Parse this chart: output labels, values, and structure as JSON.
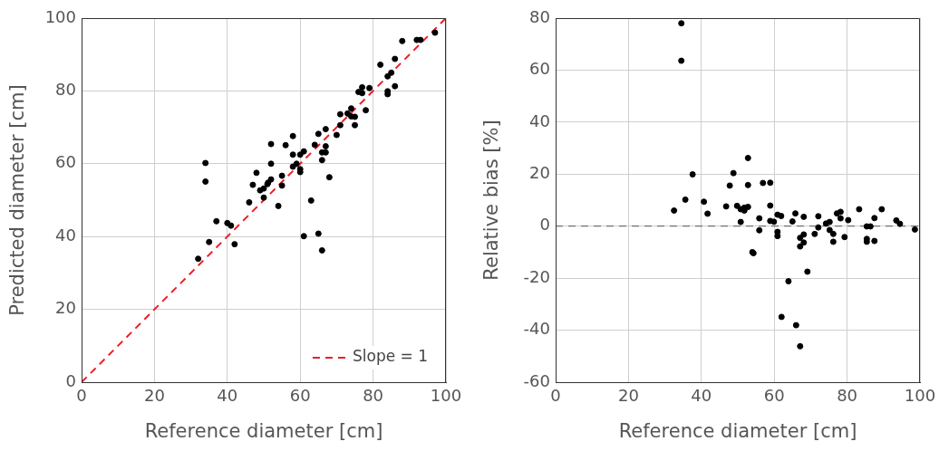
{
  "chart_data": [
    {
      "type": "scatter",
      "xlabel": "Reference diameter [cm]",
      "ylabel": "Predicted diameter [cm]",
      "xlim": [
        0,
        100
      ],
      "ylim": [
        0,
        100
      ],
      "xticks": [
        0,
        20,
        40,
        60,
        80,
        100
      ],
      "yticks": [
        0,
        20,
        40,
        60,
        80,
        100
      ],
      "grid": true,
      "marker": "circle",
      "legend": "bottom right",
      "series": [
        {
          "color": "#000000",
          "x": [
            34,
            34,
            32,
            35,
            37,
            40,
            41,
            42,
            46,
            47,
            48,
            49,
            50,
            50,
            51,
            51.2,
            52,
            52,
            52,
            54,
            55,
            55,
            56,
            58,
            58,
            58,
            59,
            60,
            60,
            60,
            61,
            61,
            63,
            64,
            65,
            65,
            66,
            66,
            66,
            67,
            67,
            67,
            68,
            70,
            71,
            71,
            73,
            74,
            74,
            75,
            75,
            76,
            77,
            77,
            78,
            79,
            82,
            84,
            84,
            84,
            85,
            86,
            86,
            88,
            92,
            93,
            97
          ],
          "values": [
            60.2,
            55.1,
            33.9,
            38.5,
            44.2,
            43.7,
            43,
            37.9,
            49.4,
            54.2,
            57.5,
            52.7,
            53.2,
            50.7,
            54.4,
            54.8,
            55.7,
            60,
            65.4,
            48.4,
            54,
            56.7,
            65.1,
            67.6,
            62.5,
            59.2,
            60,
            62.5,
            58.5,
            57.7,
            63.4,
            40.1,
            49.9,
            65.2,
            68.2,
            40.8,
            63.1,
            61,
            36.2,
            69.5,
            64.8,
            63.1,
            56.3,
            67.9,
            73.6,
            70.6,
            73.8,
            75.2,
            73,
            72.9,
            70.6,
            79.7,
            81,
            79.4,
            74.7,
            80.8,
            87.2,
            84,
            79.9,
            79.1,
            85,
            88.8,
            81.3,
            93.7,
            94,
            94,
            96
          ]
        },
        {
          "type": "line",
          "name": "Slope = 1",
          "color": "#e8202a",
          "line_style": "dashed",
          "marker": "none",
          "x": [
            0,
            100
          ],
          "values": [
            0,
            100
          ]
        }
      ]
    },
    {
      "type": "scatter",
      "xlabel": "Reference diameter [cm]",
      "ylabel": "Relative bias [%]",
      "xlim": [
        0,
        100
      ],
      "ylim": [
        -60,
        80
      ],
      "xticks": [
        0,
        20,
        40,
        60,
        80,
        100
      ],
      "yticks": [
        -60,
        -40,
        -20,
        0,
        20,
        40,
        60,
        80
      ],
      "grid": true,
      "marker": "circle",
      "ref_lines": [
        {
          "axis": "y",
          "value": 0,
          "color": "#555555",
          "line_style": "dashed"
        }
      ],
      "series": [
        {
          "color": "#000000",
          "x": [
            34.5,
            34.5,
            32.5,
            35.6,
            37.6,
            40.7,
            41.7,
            46.8,
            47.8,
            48.8,
            49.8,
            50.8,
            50.8,
            51.8,
            51.8,
            52.8,
            52.8,
            52.8,
            54,
            54.3,
            55.9,
            55.9,
            56.9,
            58.9,
            58.9,
            58.9,
            59.9,
            60.9,
            60.9,
            60.9,
            61.9,
            62,
            63.9,
            65,
            65.8,
            66,
            67.1,
            67.1,
            67.1,
            68.1,
            68.1,
            68.1,
            69.1,
            71.1,
            72.1,
            72.1,
            74.2,
            75.2,
            75.2,
            76.2,
            76.2,
            77.2,
            78.2,
            78.2,
            79.3,
            80.3,
            83.3,
            85.4,
            86.4,
            85.4,
            85.4,
            87.5,
            87.5,
            89.5,
            93.5,
            94.5,
            98.6
          ],
          "values": [
            78,
            63.6,
            6,
            10.2,
            19.9,
            9.4,
            4.8,
            7.6,
            15.6,
            20.4,
            7.8,
            6.5,
            1.6,
            7.1,
            6,
            7.4,
            15.8,
            26.2,
            -10,
            -10.4,
            3,
            -1.6,
            16.6,
            16.7,
            7.9,
            2,
            1.7,
            4.4,
            -2.2,
            -3.8,
            3.9,
            -34.9,
            -21.2,
            1.8,
            4.9,
            -38.1,
            -4.5,
            -7.8,
            -46.2,
            3.6,
            -3.2,
            -6.3,
            -17.5,
            -3,
            3.8,
            -0.5,
            1,
            1.6,
            -1.5,
            -3,
            -6,
            4.9,
            5.5,
            3,
            -4.2,
            2.3,
            6.5,
            -0.1,
            -0.1,
            -4.9,
            -6,
            3.1,
            -5.7,
            6.5,
            2.2,
            0.9,
            -1.3
          ]
        }
      ]
    }
  ]
}
